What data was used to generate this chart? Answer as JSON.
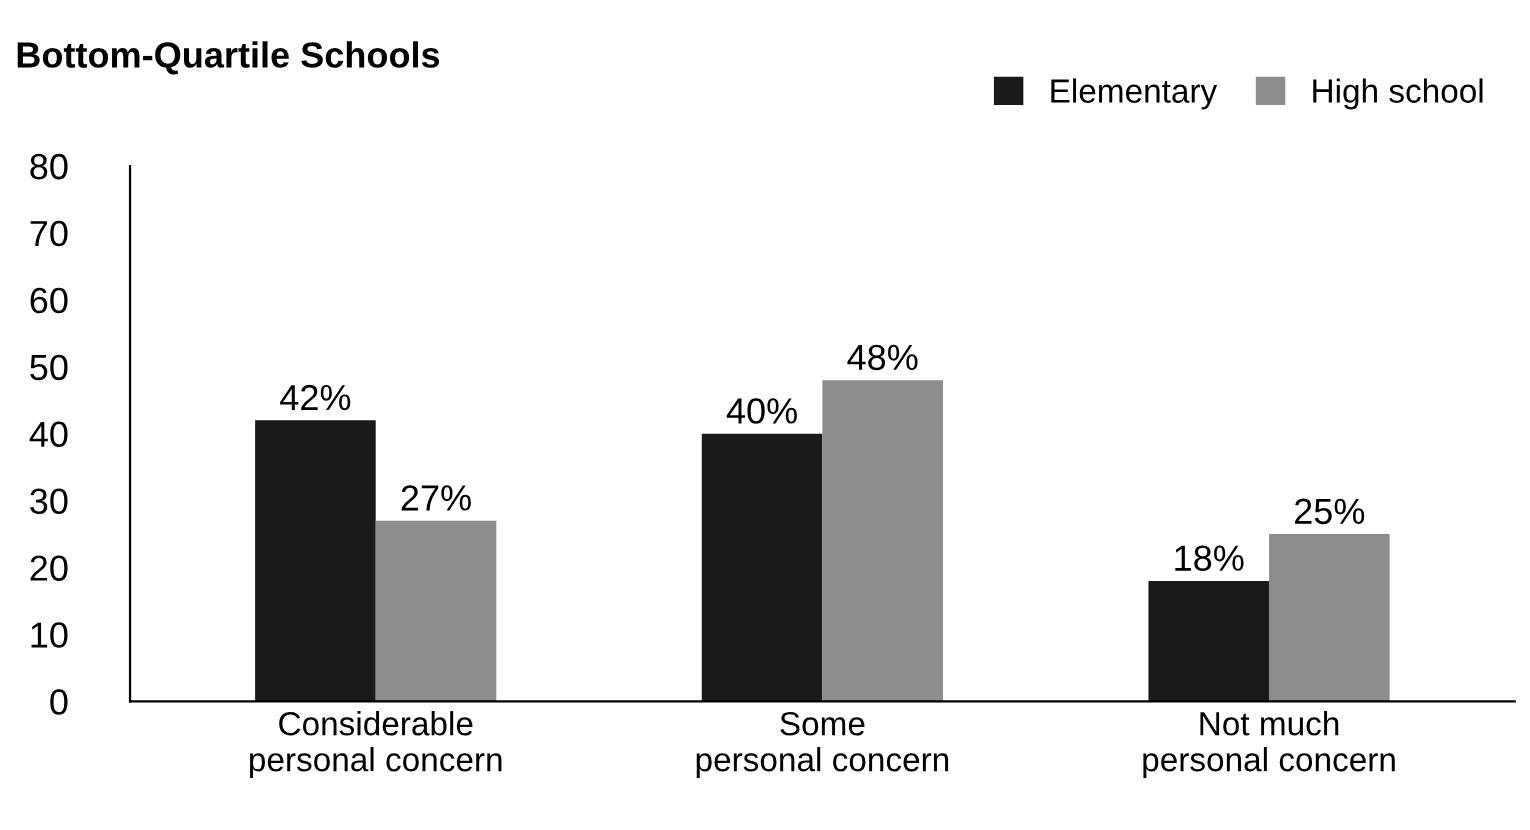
{
  "chart_data": {
    "type": "bar",
    "title": "Bottom-Quartile Schools",
    "categories": [
      "Considerable\npersonal concern",
      "Some\npersonal concern",
      "Not much\npersonal concern"
    ],
    "series": [
      {
        "name": "Elementary",
        "color": "#1a1a1a",
        "values": [
          42,
          40,
          18
        ],
        "value_labels": [
          "42%",
          "40%",
          "18%"
        ]
      },
      {
        "name": "High school",
        "color": "#8c8c8c",
        "values": [
          27,
          48,
          25
        ],
        "value_labels": [
          "27%",
          "48%",
          "25%"
        ]
      }
    ],
    "ylim": [
      0,
      80
    ],
    "yticks": [
      0,
      10,
      20,
      30,
      40,
      50,
      60,
      70,
      80
    ],
    "grid": false,
    "legend": "top right"
  }
}
